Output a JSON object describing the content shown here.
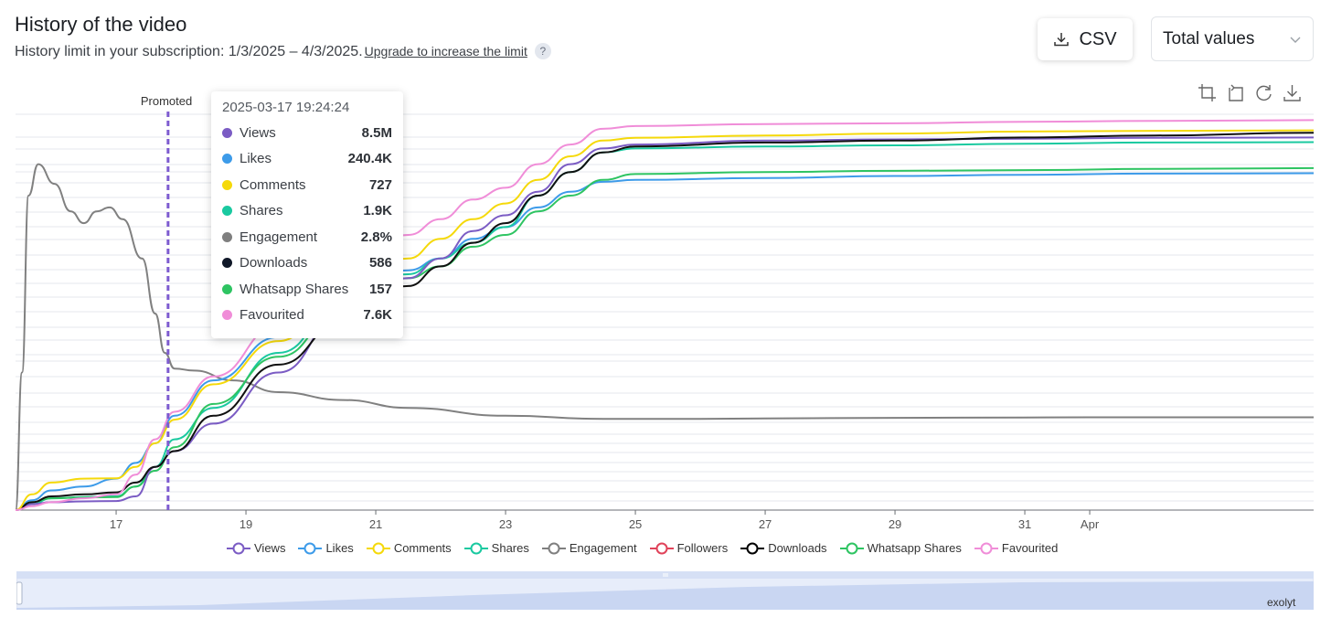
{
  "header": {
    "title": "History of the video",
    "subtitle": "History limit in your subscription: 1/3/2025 – 4/3/2025.",
    "upgrade_link": "Upgrade to increase the limit",
    "help": "?"
  },
  "controls": {
    "csv_label": "CSV",
    "select_value": "Total values"
  },
  "tooltip": {
    "timestamp": "2025-03-17 19:24:24",
    "rows": [
      {
        "name": "Views",
        "value": "8.5M",
        "color": "#7b5cc4"
      },
      {
        "name": "Likes",
        "value": "240.4K",
        "color": "#3d9be9"
      },
      {
        "name": "Comments",
        "value": "727",
        "color": "#f5d90a"
      },
      {
        "name": "Shares",
        "value": "1.9K",
        "color": "#1ac9a0"
      },
      {
        "name": "Engagement",
        "value": "2.8%",
        "color": "#7f7f7f"
      },
      {
        "name": "Downloads",
        "value": "586",
        "color": "#101828"
      },
      {
        "name": "Whatsapp Shares",
        "value": "157",
        "color": "#2ec462"
      },
      {
        "name": "Favourited",
        "value": "7.6K",
        "color": "#f08dd8"
      }
    ]
  },
  "annotation": {
    "label": "Promoted",
    "at_day": 17.8
  },
  "watermark": "exolyt",
  "chart_data": {
    "type": "line",
    "title": "History of the video",
    "x_unit": "day of March 2025 (fractional)",
    "x_range": [
      15.45,
      35.45
    ],
    "y_range": [
      0,
      100
    ],
    "y_note": "Each series is shown on its own independent hidden axis; values are approximate relative levels (0–100) read from the plot.",
    "x_ticks": [
      {
        "label": "17",
        "day": 17
      },
      {
        "label": "19",
        "day": 19
      },
      {
        "label": "21",
        "day": 21
      },
      {
        "label": "23",
        "day": 23
      },
      {
        "label": "25",
        "day": 25
      },
      {
        "label": "27",
        "day": 27
      },
      {
        "label": "29",
        "day": 29
      },
      {
        "label": "31",
        "day": 31
      },
      {
        "label": "Apr",
        "day": 32
      }
    ],
    "legend": [
      {
        "name": "Views",
        "color": "#7b5cc4"
      },
      {
        "name": "Likes",
        "color": "#3d9be9"
      },
      {
        "name": "Comments",
        "color": "#f5d90a"
      },
      {
        "name": "Shares",
        "color": "#1ac9a0"
      },
      {
        "name": "Engagement",
        "color": "#7f7f7f"
      },
      {
        "name": "Followers",
        "color": "#e0435a"
      },
      {
        "name": "Downloads",
        "color": "#000000"
      },
      {
        "name": "Whatsapp Shares",
        "color": "#2ec462"
      },
      {
        "name": "Favourited",
        "color": "#f08dd8"
      }
    ],
    "series": [
      {
        "name": "Views",
        "color": "#7b5cc4",
        "points": [
          [
            15.45,
            0
          ],
          [
            15.7,
            1.5
          ],
          [
            16,
            2
          ],
          [
            16.5,
            2.2
          ],
          [
            17,
            2.3
          ],
          [
            17.3,
            3.5
          ],
          [
            17.6,
            11
          ],
          [
            17.9,
            15
          ],
          [
            18.5,
            22
          ],
          [
            19.5,
            35
          ],
          [
            20.5,
            50
          ],
          [
            21.5,
            59
          ],
          [
            22,
            64
          ],
          [
            22.5,
            71
          ],
          [
            23,
            75
          ],
          [
            23.5,
            81
          ],
          [
            24,
            88
          ],
          [
            24.5,
            92
          ],
          [
            25,
            93
          ],
          [
            27,
            94
          ],
          [
            29,
            94.3
          ],
          [
            31,
            94.5
          ],
          [
            33,
            94.7
          ],
          [
            35.45,
            94.8
          ]
        ]
      },
      {
        "name": "Likes",
        "color": "#3d9be9",
        "points": [
          [
            15.45,
            0
          ],
          [
            15.7,
            2.5
          ],
          [
            16,
            5
          ],
          [
            16.5,
            6
          ],
          [
            17,
            8
          ],
          [
            17.3,
            12
          ],
          [
            17.6,
            17
          ],
          [
            17.9,
            24
          ],
          [
            18.5,
            33
          ],
          [
            19.5,
            44
          ],
          [
            20.5,
            55
          ],
          [
            21.5,
            61
          ],
          [
            22,
            64
          ],
          [
            22.5,
            69
          ],
          [
            23,
            72
          ],
          [
            23.5,
            77
          ],
          [
            24,
            81
          ],
          [
            24.5,
            83.5
          ],
          [
            25,
            84
          ],
          [
            27,
            84.5
          ],
          [
            29,
            85
          ],
          [
            31,
            85.3
          ],
          [
            33,
            85.6
          ],
          [
            35.45,
            85.7
          ]
        ]
      },
      {
        "name": "Comments",
        "color": "#f5d90a",
        "points": [
          [
            15.45,
            0
          ],
          [
            15.7,
            4
          ],
          [
            16,
            7
          ],
          [
            16.5,
            8
          ],
          [
            17,
            8.1
          ],
          [
            17.3,
            11
          ],
          [
            17.6,
            17
          ],
          [
            17.9,
            23
          ],
          [
            18.5,
            32
          ],
          [
            19.5,
            43
          ],
          [
            20.5,
            56
          ],
          [
            21.5,
            64
          ],
          [
            22,
            69
          ],
          [
            22.5,
            74
          ],
          [
            23,
            78
          ],
          [
            23.5,
            84
          ],
          [
            24,
            90
          ],
          [
            24.5,
            94
          ],
          [
            25,
            94.7
          ],
          [
            27,
            95.3
          ],
          [
            29,
            95.8
          ],
          [
            31,
            96.3
          ],
          [
            33,
            96.5
          ],
          [
            35.45,
            96.6
          ]
        ]
      },
      {
        "name": "Shares",
        "color": "#1ac9a0",
        "points": [
          [
            15.45,
            0
          ],
          [
            15.7,
            1.5
          ],
          [
            16,
            3
          ],
          [
            16.5,
            3.3
          ],
          [
            17,
            3.5
          ],
          [
            17.3,
            6
          ],
          [
            17.6,
            11
          ],
          [
            17.9,
            18
          ],
          [
            18.5,
            26
          ],
          [
            19.5,
            40
          ],
          [
            20.5,
            53
          ],
          [
            21.5,
            60
          ],
          [
            22,
            64
          ],
          [
            22.5,
            68
          ],
          [
            23,
            72
          ],
          [
            23.5,
            80
          ],
          [
            24,
            86
          ],
          [
            24.5,
            91
          ],
          [
            25,
            92
          ],
          [
            27,
            92.5
          ],
          [
            29,
            92.8
          ],
          [
            31,
            93.2
          ],
          [
            33,
            93.5
          ],
          [
            35.45,
            93.6
          ]
        ]
      },
      {
        "name": "Engagement",
        "color": "#808080",
        "points": [
          [
            15.45,
            0
          ],
          [
            15.55,
            35
          ],
          [
            15.65,
            80
          ],
          [
            15.8,
            88
          ],
          [
            16.05,
            83
          ],
          [
            16.3,
            76
          ],
          [
            16.5,
            73
          ],
          [
            16.7,
            76
          ],
          [
            16.9,
            77
          ],
          [
            17.1,
            74
          ],
          [
            17.4,
            64
          ],
          [
            17.6,
            50
          ],
          [
            17.75,
            40
          ],
          [
            17.9,
            36
          ],
          [
            18.2,
            35.5
          ],
          [
            18.8,
            33
          ],
          [
            19.5,
            30
          ],
          [
            20.5,
            28
          ],
          [
            21.5,
            26
          ],
          [
            23,
            24
          ],
          [
            24.5,
            23.2
          ],
          [
            26,
            23.2
          ],
          [
            28,
            23.4
          ],
          [
            30,
            23.5
          ],
          [
            32,
            23.6
          ],
          [
            35.45,
            23.6
          ]
        ]
      },
      {
        "name": "Downloads",
        "color": "#101010",
        "points": [
          [
            15.45,
            0
          ],
          [
            15.7,
            2
          ],
          [
            16,
            3.5
          ],
          [
            16.5,
            4
          ],
          [
            17,
            4.5
          ],
          [
            17.3,
            7
          ],
          [
            17.6,
            11
          ],
          [
            17.9,
            15
          ],
          [
            18.5,
            24
          ],
          [
            19.5,
            37
          ],
          [
            20.5,
            48
          ],
          [
            21.5,
            57
          ],
          [
            22,
            62
          ],
          [
            22.5,
            68
          ],
          [
            23,
            73
          ],
          [
            23.5,
            80
          ],
          [
            24,
            86
          ],
          [
            24.5,
            91
          ],
          [
            25,
            92.5
          ],
          [
            27,
            93.5
          ],
          [
            29,
            94
          ],
          [
            31,
            94.8
          ],
          [
            33,
            95.3
          ],
          [
            35.45,
            96
          ]
        ]
      },
      {
        "name": "Whatsapp Shares",
        "color": "#2ec462",
        "points": [
          [
            15.45,
            0
          ],
          [
            15.7,
            2
          ],
          [
            16,
            3
          ],
          [
            16.5,
            3.2
          ],
          [
            17,
            3.3
          ],
          [
            17.3,
            6
          ],
          [
            17.6,
            10
          ],
          [
            17.9,
            16
          ],
          [
            18.5,
            27
          ],
          [
            19.5,
            39
          ],
          [
            20.5,
            51
          ],
          [
            21.5,
            59
          ],
          [
            22,
            62
          ],
          [
            22.5,
            67
          ],
          [
            23,
            70
          ],
          [
            23.5,
            76
          ],
          [
            24,
            80
          ],
          [
            24.5,
            84
          ],
          [
            25,
            85.5
          ],
          [
            27,
            86
          ],
          [
            29,
            86.3
          ],
          [
            31,
            86.5
          ],
          [
            33,
            86.8
          ],
          [
            35.45,
            87
          ]
        ]
      },
      {
        "name": "Favourited",
        "color": "#f08dd8",
        "points": [
          [
            15.45,
            0
          ],
          [
            15.7,
            1
          ],
          [
            16,
            2
          ],
          [
            16.5,
            3
          ],
          [
            17,
            4
          ],
          [
            17.3,
            9
          ],
          [
            17.6,
            18
          ],
          [
            17.9,
            25
          ],
          [
            18.5,
            34
          ],
          [
            19.5,
            47
          ],
          [
            20.5,
            60
          ],
          [
            21.5,
            70
          ],
          [
            22,
            74
          ],
          [
            22.5,
            79
          ],
          [
            23,
            82
          ],
          [
            23.5,
            88
          ],
          [
            24,
            93
          ],
          [
            24.5,
            97
          ],
          [
            25,
            97.7
          ],
          [
            27,
            98.2
          ],
          [
            29,
            98.4
          ],
          [
            31,
            98.8
          ],
          [
            33,
            99
          ],
          [
            35.45,
            99.2
          ]
        ]
      }
    ]
  }
}
